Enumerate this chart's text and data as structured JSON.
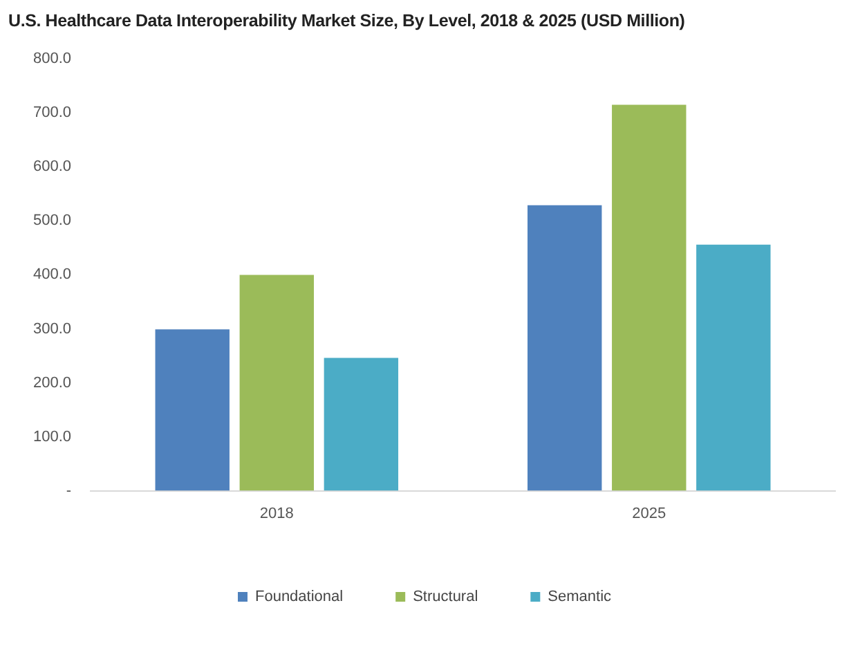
{
  "chart_data": {
    "type": "bar",
    "title": "U.S. Healthcare Data Interoperability Market Size, By Level, 2018 & 2025 (USD Million)",
    "categories": [
      "2018",
      "2025"
    ],
    "series": [
      {
        "name": "Foundational",
        "color": "#4f81bd",
        "values": [
          299,
          529
        ]
      },
      {
        "name": "Structural",
        "color": "#9bbb59",
        "values": [
          400,
          715
        ]
      },
      {
        "name": "Semantic",
        "color": "#4bacc6",
        "values": [
          246,
          456
        ]
      }
    ],
    "ylim": [
      0,
      800
    ],
    "yticks": [
      {
        "value": 0,
        "label": "-"
      },
      {
        "value": 100,
        "label": "100.0"
      },
      {
        "value": 200,
        "label": "200.0"
      },
      {
        "value": 300,
        "label": "300.0"
      },
      {
        "value": 400,
        "label": "400.0"
      },
      {
        "value": 500,
        "label": "500.0"
      },
      {
        "value": 600,
        "label": "600.0"
      },
      {
        "value": 700,
        "label": "700.0"
      },
      {
        "value": 800,
        "label": "800.0"
      }
    ],
    "grid": false,
    "legend": "bottom"
  }
}
